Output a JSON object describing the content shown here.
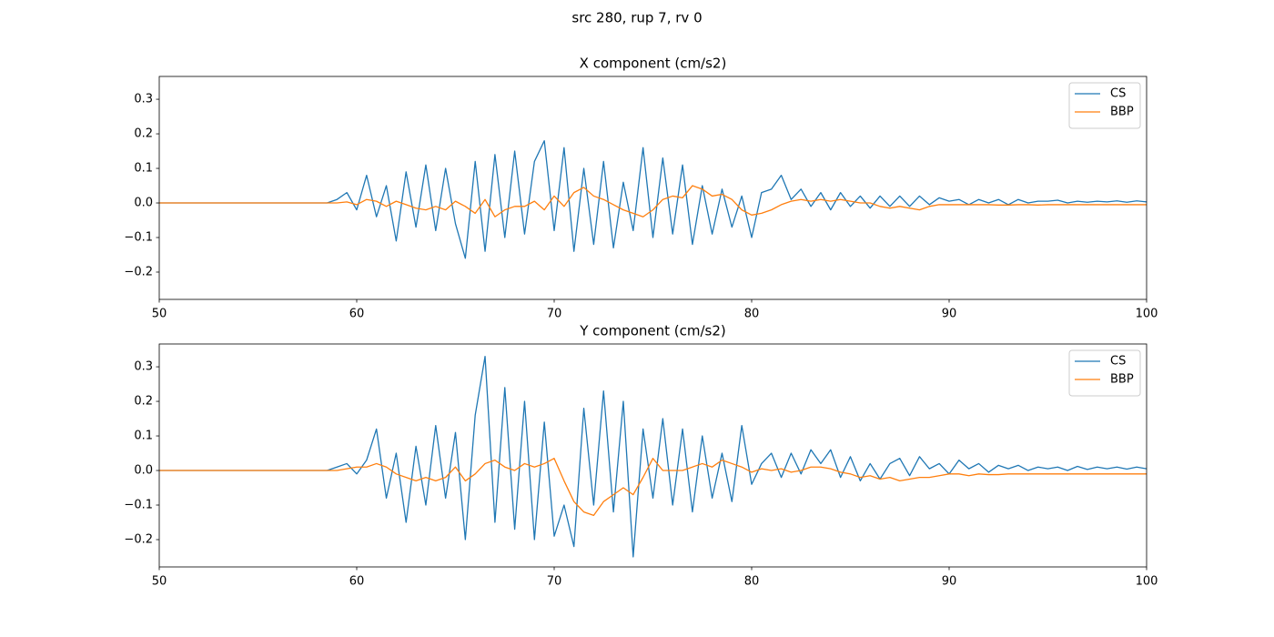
{
  "title": "src 280, rup 7, rv 0",
  "chart_data": [
    {
      "type": "line",
      "title": "X component (cm/s2)",
      "legend": "upper right",
      "grid": false,
      "xlim": [
        50,
        100
      ],
      "xticks": [
        50,
        60,
        70,
        80,
        90,
        100
      ],
      "ylim": [
        -0.279,
        0.366
      ],
      "yticks": [
        {
          "value": -0.2,
          "label": "−0.2"
        },
        {
          "value": -0.1,
          "label": "−0.1"
        },
        {
          "value": 0,
          "label": "0.0"
        },
        0.1,
        0.2,
        0.3
      ],
      "x": [
        50,
        50.5,
        51,
        51.5,
        52,
        52.5,
        53,
        53.5,
        54,
        54.5,
        55,
        55.5,
        56,
        56.5,
        57,
        57.5,
        58,
        58.5,
        59,
        59.5,
        60,
        60.5,
        61,
        61.5,
        62,
        62.5,
        63,
        63.5,
        64,
        64.5,
        65,
        65.5,
        66,
        66.5,
        67,
        67.5,
        68,
        68.5,
        69,
        69.5,
        70,
        70.5,
        71,
        71.5,
        72,
        72.5,
        73,
        73.5,
        74,
        74.5,
        75,
        75.5,
        76,
        76.5,
        77,
        77.5,
        78,
        78.5,
        79,
        79.5,
        80,
        80.5,
        81,
        81.5,
        82,
        82.5,
        83,
        83.5,
        84,
        84.5,
        85,
        85.5,
        86,
        86.5,
        87,
        87.5,
        88,
        88.5,
        89,
        89.5,
        90,
        90.5,
        91,
        91.5,
        92,
        92.5,
        93,
        93.5,
        94,
        94.5,
        95,
        95.5,
        96,
        96.5,
        97,
        97.5,
        98,
        98.5,
        99,
        99.5,
        100
      ],
      "series": [
        {
          "name": "CS",
          "color": "#1f77b4",
          "values": [
            0,
            0,
            0,
            0,
            0,
            0,
            0,
            0,
            0,
            0,
            0,
            0,
            0,
            0,
            0,
            0,
            0,
            0,
            0.01,
            0.03,
            -0.02,
            0.08,
            -0.04,
            0.05,
            -0.11,
            0.09,
            -0.07,
            0.11,
            -0.08,
            0.1,
            -0.06,
            -0.16,
            0.12,
            -0.14,
            0.14,
            -0.1,
            0.15,
            -0.09,
            0.12,
            0.18,
            -0.08,
            0.16,
            -0.14,
            0.1,
            -0.12,
            0.12,
            -0.13,
            0.06,
            -0.08,
            0.16,
            -0.1,
            0.13,
            -0.09,
            0.11,
            -0.12,
            0.05,
            -0.09,
            0.04,
            -0.07,
            0.02,
            -0.1,
            0.03,
            0.04,
            0.08,
            0.01,
            0.04,
            -0.01,
            0.03,
            -0.02,
            0.03,
            -0.01,
            0.02,
            -0.015,
            0.02,
            -0.01,
            0.02,
            -0.01,
            0.02,
            -0.005,
            0.015,
            0.005,
            0.01,
            -0.005,
            0.01,
            0,
            0.01,
            -0.005,
            0.01,
            0,
            0.005,
            0.005,
            0.008,
            0,
            0.005,
            0.002,
            0.005,
            0.003,
            0.006,
            0.002,
            0.006,
            0.003
          ]
        },
        {
          "name": "BBP",
          "color": "#ff7f0e",
          "values": [
            0,
            0,
            0,
            0,
            0,
            0,
            0,
            0,
            0,
            0,
            0,
            0,
            0,
            0,
            0,
            0,
            0,
            0,
            0,
            0.003,
            -0.005,
            0.01,
            0.005,
            -0.01,
            0.005,
            -0.005,
            -0.015,
            -0.02,
            -0.01,
            -0.02,
            0.005,
            -0.01,
            -0.03,
            0.01,
            -0.04,
            -0.02,
            -0.01,
            -0.01,
            0.005,
            -0.02,
            0.02,
            -0.01,
            0.03,
            0.045,
            0.02,
            0.01,
            -0.005,
            -0.02,
            -0.03,
            -0.04,
            -0.02,
            0.01,
            0.02,
            0.015,
            0.05,
            0.04,
            0.02,
            0.025,
            0.01,
            -0.02,
            -0.035,
            -0.03,
            -0.02,
            -0.005,
            0.005,
            0.01,
            0.005,
            0.01,
            0.005,
            0.01,
            0.005,
            0,
            0,
            -0.01,
            -0.015,
            -0.01,
            -0.015,
            -0.02,
            -0.01,
            -0.005,
            -0.005,
            -0.005,
            -0.005,
            -0.005,
            -0.005,
            -0.006,
            -0.006,
            -0.005,
            -0.005,
            -0.006,
            -0.005,
            -0.005,
            -0.005,
            -0.005,
            -0.005,
            -0.005,
            -0.005,
            -0.005,
            -0.005,
            -0.005,
            -0.005
          ]
        }
      ]
    },
    {
      "type": "line",
      "title": "Y component (cm/s2)",
      "legend": "upper right",
      "grid": false,
      "xlim": [
        50,
        100
      ],
      "xticks": [
        50,
        60,
        70,
        80,
        90,
        100
      ],
      "ylim": [
        -0.279,
        0.366
      ],
      "yticks": [
        {
          "value": -0.2,
          "label": "−0.2"
        },
        {
          "value": -0.1,
          "label": "−0.1"
        },
        {
          "value": 0,
          "label": "0.0"
        },
        0.1,
        0.2,
        0.3
      ],
      "x": [
        50,
        50.5,
        51,
        51.5,
        52,
        52.5,
        53,
        53.5,
        54,
        54.5,
        55,
        55.5,
        56,
        56.5,
        57,
        57.5,
        58,
        58.5,
        59,
        59.5,
        60,
        60.5,
        61,
        61.5,
        62,
        62.5,
        63,
        63.5,
        64,
        64.5,
        65,
        65.5,
        66,
        66.5,
        67,
        67.5,
        68,
        68.5,
        69,
        69.5,
        70,
        70.5,
        71,
        71.5,
        72,
        72.5,
        73,
        73.5,
        74,
        74.5,
        75,
        75.5,
        76,
        76.5,
        77,
        77.5,
        78,
        78.5,
        79,
        79.5,
        80,
        80.5,
        81,
        81.5,
        82,
        82.5,
        83,
        83.5,
        84,
        84.5,
        85,
        85.5,
        86,
        86.5,
        87,
        87.5,
        88,
        88.5,
        89,
        89.5,
        90,
        90.5,
        91,
        91.5,
        92,
        92.5,
        93,
        93.5,
        94,
        94.5,
        95,
        95.5,
        96,
        96.5,
        97,
        97.5,
        98,
        98.5,
        99,
        99.5,
        100
      ],
      "series": [
        {
          "name": "CS",
          "color": "#1f77b4",
          "values": [
            0,
            0,
            0,
            0,
            0,
            0,
            0,
            0,
            0,
            0,
            0,
            0,
            0,
            0,
            0,
            0,
            0,
            0,
            0.01,
            0.02,
            -0.01,
            0.03,
            0.12,
            -0.08,
            0.05,
            -0.15,
            0.07,
            -0.1,
            0.13,
            -0.08,
            0.11,
            -0.2,
            0.16,
            0.33,
            -0.15,
            0.24,
            -0.17,
            0.2,
            -0.2,
            0.14,
            -0.19,
            -0.1,
            -0.22,
            0.18,
            -0.1,
            0.23,
            -0.12,
            0.2,
            -0.25,
            0.12,
            -0.08,
            0.15,
            -0.1,
            0.12,
            -0.12,
            0.1,
            -0.08,
            0.05,
            -0.09,
            0.13,
            -0.04,
            0.02,
            0.05,
            -0.02,
            0.05,
            -0.01,
            0.06,
            0.02,
            0.06,
            -0.02,
            0.04,
            -0.03,
            0.02,
            -0.025,
            0.02,
            0.035,
            -0.015,
            0.04,
            0.005,
            0.02,
            -0.01,
            0.03,
            0.005,
            0.02,
            -0.005,
            0.015,
            0.005,
            0.015,
            0,
            0.01,
            0.005,
            0.01,
            0,
            0.012,
            0.003,
            0.01,
            0.005,
            0.01,
            0.004,
            0.01,
            0.005
          ]
        },
        {
          "name": "BBP",
          "color": "#ff7f0e",
          "values": [
            0,
            0,
            0,
            0,
            0,
            0,
            0,
            0,
            0,
            0,
            0,
            0,
            0,
            0,
            0,
            0,
            0,
            0,
            0,
            0.005,
            0.01,
            0.01,
            0.02,
            0.01,
            -0.01,
            -0.02,
            -0.03,
            -0.02,
            -0.03,
            -0.02,
            0.01,
            -0.03,
            -0.01,
            0.02,
            0.03,
            0.01,
            0,
            0.02,
            0.01,
            0.02,
            0.035,
            -0.03,
            -0.09,
            -0.12,
            -0.13,
            -0.09,
            -0.07,
            -0.05,
            -0.07,
            -0.02,
            0.035,
            0,
            0,
            0,
            0.01,
            0.02,
            0.01,
            0.03,
            0.02,
            0.01,
            -0.005,
            0.005,
            0,
            0.005,
            -0.005,
            0,
            0.01,
            0.01,
            0.005,
            -0.005,
            -0.01,
            -0.02,
            -0.015,
            -0.025,
            -0.02,
            -0.03,
            -0.025,
            -0.02,
            -0.02,
            -0.015,
            -0.01,
            -0.01,
            -0.015,
            -0.01,
            -0.012,
            -0.012,
            -0.01,
            -0.01,
            -0.01,
            -0.01,
            -0.01,
            -0.01,
            -0.01,
            -0.01,
            -0.01,
            -0.01,
            -0.01,
            -0.01,
            -0.01,
            -0.01,
            -0.01
          ]
        }
      ]
    }
  ]
}
